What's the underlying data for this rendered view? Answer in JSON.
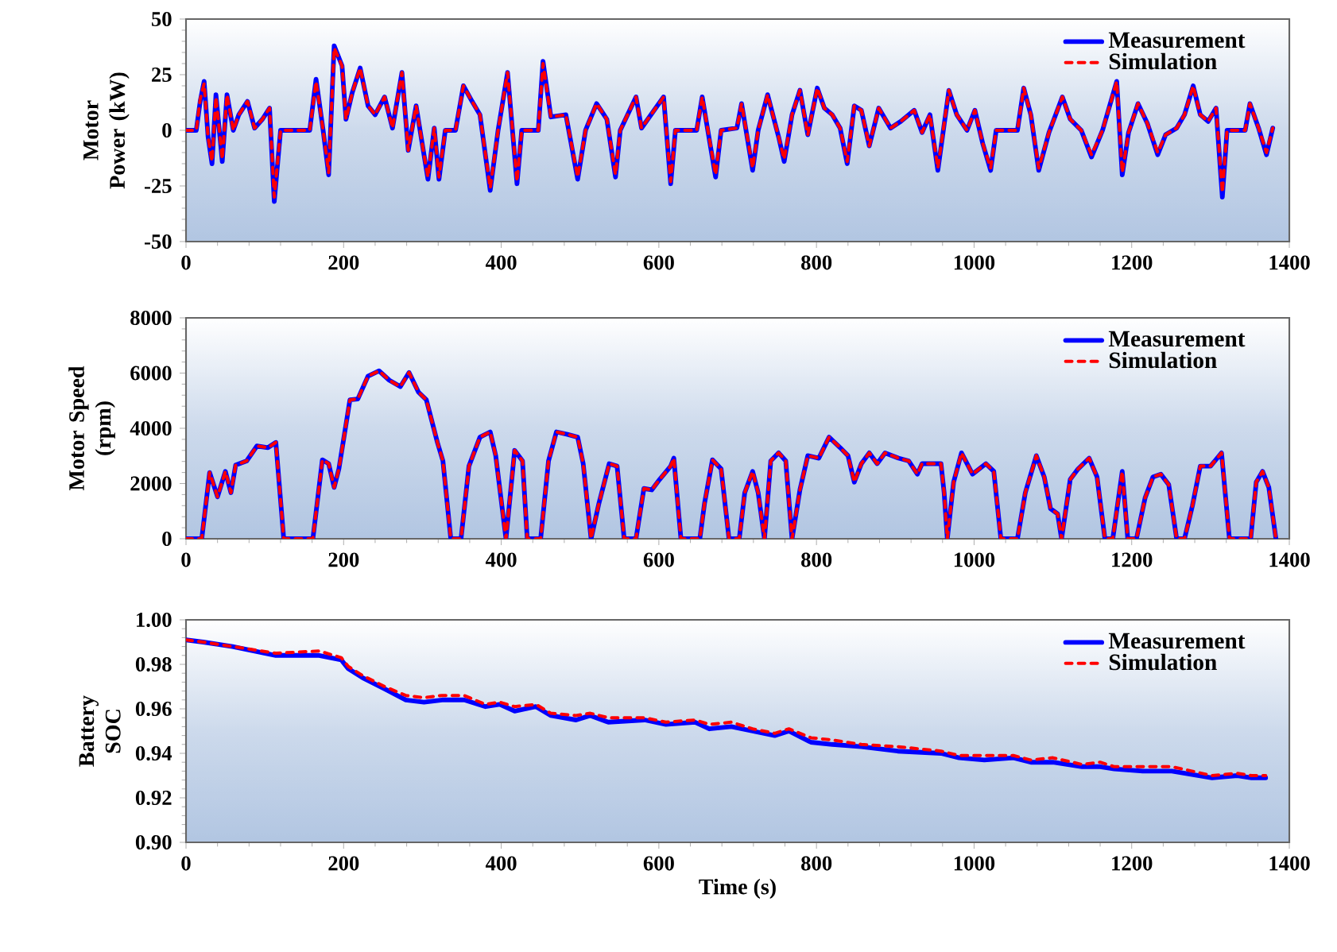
{
  "chart_data": [
    {
      "type": "line",
      "ylabel": "Motor Power (kW)",
      "legend": "top right",
      "xlim": [
        0,
        1400
      ],
      "xticks": [
        0,
        200,
        400,
        600,
        800,
        1000,
        1200,
        1400
      ],
      "ylim": [
        -50,
        50
      ],
      "yticks": [
        -50,
        -25,
        0,
        25,
        50
      ],
      "x": [
        0,
        13,
        18,
        23,
        28,
        33,
        38,
        46,
        52,
        60,
        67,
        78,
        87,
        97,
        106,
        112,
        120,
        157,
        165,
        174,
        181,
        188,
        198,
        203,
        211,
        221,
        231,
        240,
        252,
        262,
        274,
        282,
        292,
        302,
        307,
        315,
        321,
        329,
        342,
        352,
        363,
        373,
        386,
        396,
        408,
        420,
        426,
        447,
        453,
        463,
        482,
        497,
        507,
        521,
        534,
        545,
        551,
        571,
        578,
        594,
        606,
        615,
        621,
        648,
        655,
        672,
        679,
        699,
        705,
        719,
        726,
        738,
        752,
        759,
        769,
        779,
        789,
        801,
        810,
        820,
        830,
        839,
        848,
        857,
        867,
        879,
        894,
        907,
        924,
        934,
        944,
        954,
        968,
        978,
        991,
        1001,
        1011,
        1021,
        1028,
        1055,
        1063,
        1072,
        1082,
        1095,
        1112,
        1122,
        1136,
        1149,
        1163,
        1181,
        1188,
        1196,
        1208,
        1220,
        1233,
        1243,
        1257,
        1267,
        1278,
        1287,
        1297,
        1307,
        1315,
        1321,
        1344,
        1350,
        1361,
        1371,
        1379
      ],
      "series": [
        {
          "name": "Measurement",
          "color": "#0000ff",
          "line_style": "solid",
          "values": [
            0,
            0,
            13,
            22,
            -3,
            -15,
            16,
            -14,
            16,
            0,
            7,
            13,
            1,
            5,
            10,
            -32,
            0,
            0,
            23,
            0,
            -20,
            38,
            29,
            5,
            17,
            28,
            11,
            7,
            15,
            1,
            26,
            -9,
            11,
            -11,
            -22,
            1,
            -22,
            0,
            0,
            20,
            13,
            7,
            -27,
            0,
            26,
            -24,
            0,
            0,
            31,
            6,
            7,
            -22,
            0,
            12,
            5,
            -21,
            0,
            15,
            1,
            9,
            15,
            -24,
            0,
            0,
            15,
            -21,
            0,
            1,
            12,
            -18,
            0,
            16,
            -3,
            -14,
            7,
            18,
            -2,
            19,
            10,
            7,
            1,
            -15,
            11,
            9,
            -7,
            10,
            1,
            4,
            9,
            -1,
            7,
            -18,
            18,
            7,
            0,
            9,
            -6,
            -18,
            0,
            0,
            19,
            7,
            -18,
            -1,
            15,
            5,
            0,
            -12,
            0,
            22,
            -20,
            -1,
            12,
            3,
            -11,
            -2,
            1,
            7,
            20,
            7,
            4,
            10,
            -30,
            0,
            0,
            12,
            1,
            -11,
            1
          ]
        },
        {
          "name": "Simulation",
          "color": "#ff0000",
          "line_style": "dashed",
          "values": [
            0,
            0,
            14,
            21,
            -3,
            -14,
            15,
            -13,
            16,
            0,
            7,
            13,
            1,
            5,
            10,
            -30,
            0,
            0,
            22,
            0,
            -19,
            37,
            29,
            5,
            17,
            28,
            11,
            7,
            15,
            1,
            26,
            -9,
            11,
            -11,
            -21,
            1,
            -21,
            0,
            0,
            20,
            13,
            7,
            -26,
            0,
            26,
            -23,
            0,
            0,
            30,
            6,
            7,
            -21,
            0,
            12,
            5,
            -20,
            0,
            15,
            1,
            9,
            15,
            -23,
            0,
            0,
            15,
            -20,
            0,
            1,
            12,
            -17,
            0,
            16,
            -3,
            -13,
            7,
            18,
            -2,
            19,
            10,
            7,
            1,
            -14,
            11,
            9,
            -7,
            10,
            1,
            4,
            9,
            -1,
            7,
            -17,
            18,
            7,
            0,
            9,
            -6,
            -17,
            0,
            0,
            19,
            7,
            -17,
            -1,
            15,
            5,
            0,
            -11,
            0,
            22,
            -19,
            -1,
            12,
            3,
            -10,
            -2,
            1,
            7,
            20,
            7,
            4,
            10,
            -28,
            0,
            0,
            12,
            1,
            -10,
            1
          ]
        }
      ]
    },
    {
      "type": "line",
      "ylabel": "Motor Speed (rpm)",
      "legend": "top right",
      "xlim": [
        0,
        1400
      ],
      "xticks": [
        0,
        200,
        400,
        600,
        800,
        1000,
        1200,
        1400
      ],
      "ylim": [
        0,
        8000
      ],
      "yticks": [
        0,
        2000,
        4000,
        6000,
        8000
      ],
      "x": [
        0,
        20,
        30,
        40,
        50,
        57,
        63,
        77,
        90,
        104,
        114,
        124,
        161,
        173,
        181,
        188,
        194,
        208,
        218,
        231,
        245,
        258,
        272,
        283,
        295,
        305,
        319,
        326,
        336,
        349,
        359,
        373,
        386,
        393,
        406,
        417,
        427,
        433,
        450,
        460,
        470,
        484,
        497,
        504,
        514,
        524,
        537,
        547,
        556,
        571,
        581,
        591,
        601,
        615,
        619,
        628,
        652,
        658,
        668,
        679,
        689,
        702,
        709,
        719,
        726,
        734,
        742,
        752,
        761,
        769,
        779,
        789,
        803,
        816,
        830,
        840,
        848,
        857,
        867,
        877,
        887,
        904,
        917,
        928,
        934,
        958,
        962,
        966,
        974,
        984,
        998,
        1015,
        1025,
        1034,
        1055,
        1065,
        1079,
        1089,
        1097,
        1106,
        1111,
        1122,
        1132,
        1146,
        1156,
        1166,
        1176,
        1188,
        1195,
        1206,
        1217,
        1227,
        1237,
        1247,
        1257,
        1267,
        1277,
        1287,
        1300,
        1314,
        1324,
        1351,
        1358,
        1366,
        1374,
        1383
      ],
      "series": [
        {
          "name": "Measurement",
          "color": "#0000ff",
          "line_style": "solid",
          "values": [
            0,
            0,
            2400,
            1520,
            2440,
            1670,
            2670,
            2820,
            3360,
            3300,
            3490,
            0,
            0,
            2860,
            2720,
            1860,
            2530,
            5030,
            5060,
            5890,
            6080,
            5740,
            5510,
            6020,
            5310,
            5030,
            3490,
            2820,
            0,
            0,
            2630,
            3680,
            3870,
            3010,
            0,
            3200,
            2820,
            0,
            0,
            2820,
            3870,
            3780,
            3680,
            2720,
            0,
            1290,
            2720,
            2630,
            0,
            0,
            1820,
            1770,
            2150,
            2630,
            2920,
            0,
            0,
            1290,
            2860,
            2530,
            0,
            0,
            1670,
            2440,
            1670,
            0,
            2820,
            3110,
            2820,
            0,
            1770,
            3010,
            2920,
            3680,
            3300,
            3010,
            2050,
            2720,
            3110,
            2720,
            3110,
            2920,
            2820,
            2340,
            2720,
            2720,
            1670,
            0,
            2050,
            3110,
            2340,
            2720,
            2440,
            0,
            0,
            1670,
            3010,
            2240,
            1090,
            900,
            0,
            2150,
            2530,
            2920,
            2240,
            0,
            0,
            2440,
            0,
            0,
            1480,
            2240,
            2340,
            1960,
            0,
            0,
            1190,
            2630,
            2630,
            3110,
            0,
            0,
            2050,
            2440,
            1860,
            0
          ]
        },
        {
          "name": "Simulation",
          "color": "#ff0000",
          "line_style": "dashed",
          "values": [
            0,
            0,
            2400,
            1520,
            2440,
            1670,
            2670,
            2820,
            3360,
            3300,
            3490,
            0,
            0,
            2860,
            2720,
            1860,
            2530,
            5030,
            5060,
            5890,
            6080,
            5740,
            5510,
            6020,
            5310,
            5030,
            3490,
            2820,
            0,
            0,
            2630,
            3680,
            3870,
            3010,
            0,
            3200,
            2820,
            0,
            0,
            2820,
            3870,
            3780,
            3680,
            2720,
            0,
            1290,
            2720,
            2630,
            0,
            0,
            1820,
            1770,
            2150,
            2630,
            2920,
            0,
            0,
            1290,
            2860,
            2530,
            0,
            0,
            1670,
            2440,
            1670,
            0,
            2820,
            3110,
            2820,
            0,
            1770,
            3010,
            2920,
            3680,
            3300,
            3010,
            2050,
            2720,
            3110,
            2720,
            3110,
            2920,
            2820,
            2340,
            2720,
            2720,
            1670,
            0,
            2050,
            3110,
            2340,
            2720,
            2440,
            0,
            0,
            1670,
            3010,
            2240,
            1090,
            900,
            0,
            2150,
            2530,
            2920,
            2240,
            0,
            0,
            2440,
            0,
            0,
            1480,
            2240,
            2340,
            1960,
            0,
            0,
            1190,
            2630,
            2630,
            3110,
            0,
            0,
            2050,
            2440,
            1860,
            0
          ]
        }
      ]
    },
    {
      "type": "line",
      "ylabel": "Battery SOC",
      "xlabel": "Time (s)",
      "legend": "top right",
      "xlim": [
        0,
        1400
      ],
      "xticks": [
        0,
        200,
        400,
        600,
        800,
        1000,
        1200,
        1400
      ],
      "ylim": [
        0.9,
        1.0
      ],
      "yticks": [
        {
          "value": 0.9,
          "label": "0.90"
        },
        {
          "value": 0.92,
          "label": "0.92"
        },
        {
          "value": 0.94,
          "label": "0.94"
        },
        {
          "value": 0.96,
          "label": "0.96"
        },
        {
          "value": 0.98,
          "label": "0.98"
        },
        {
          "value": 1.0,
          "label": "1.00"
        }
      ],
      "x": [
        0,
        22,
        59,
        114,
        169,
        197,
        206,
        224,
        252,
        279,
        302,
        325,
        353,
        380,
        398,
        417,
        444,
        463,
        495,
        513,
        536,
        582,
        609,
        646,
        664,
        692,
        719,
        747,
        765,
        793,
        820,
        857,
        903,
        958,
        981,
        1013,
        1050,
        1072,
        1100,
        1137,
        1160,
        1178,
        1214,
        1251,
        1302,
        1334,
        1352,
        1370
      ],
      "series": [
        {
          "name": "Measurement",
          "color": "#0000ff",
          "line_style": "solid",
          "values": [
            0.991,
            0.99,
            0.988,
            0.984,
            0.984,
            0.982,
            0.978,
            0.974,
            0.969,
            0.964,
            0.963,
            0.964,
            0.964,
            0.961,
            0.962,
            0.959,
            0.961,
            0.957,
            0.955,
            0.957,
            0.954,
            0.955,
            0.953,
            0.954,
            0.951,
            0.952,
            0.95,
            0.948,
            0.95,
            0.945,
            0.944,
            0.943,
            0.941,
            0.94,
            0.938,
            0.937,
            0.938,
            0.936,
            0.936,
            0.934,
            0.934,
            0.933,
            0.932,
            0.932,
            0.929,
            0.93,
            0.929,
            0.929
          ]
        },
        {
          "name": "Simulation",
          "color": "#ff0000",
          "line_style": "dashed",
          "values": [
            0.991,
            0.99,
            0.988,
            0.985,
            0.986,
            0.983,
            0.979,
            0.975,
            0.97,
            0.966,
            0.965,
            0.966,
            0.966,
            0.962,
            0.963,
            0.961,
            0.962,
            0.958,
            0.957,
            0.958,
            0.956,
            0.956,
            0.954,
            0.955,
            0.953,
            0.954,
            0.951,
            0.949,
            0.951,
            0.947,
            0.946,
            0.944,
            0.943,
            0.941,
            0.939,
            0.939,
            0.939,
            0.937,
            0.938,
            0.935,
            0.936,
            0.934,
            0.934,
            0.934,
            0.93,
            0.931,
            0.93,
            0.93
          ]
        }
      ]
    }
  ]
}
